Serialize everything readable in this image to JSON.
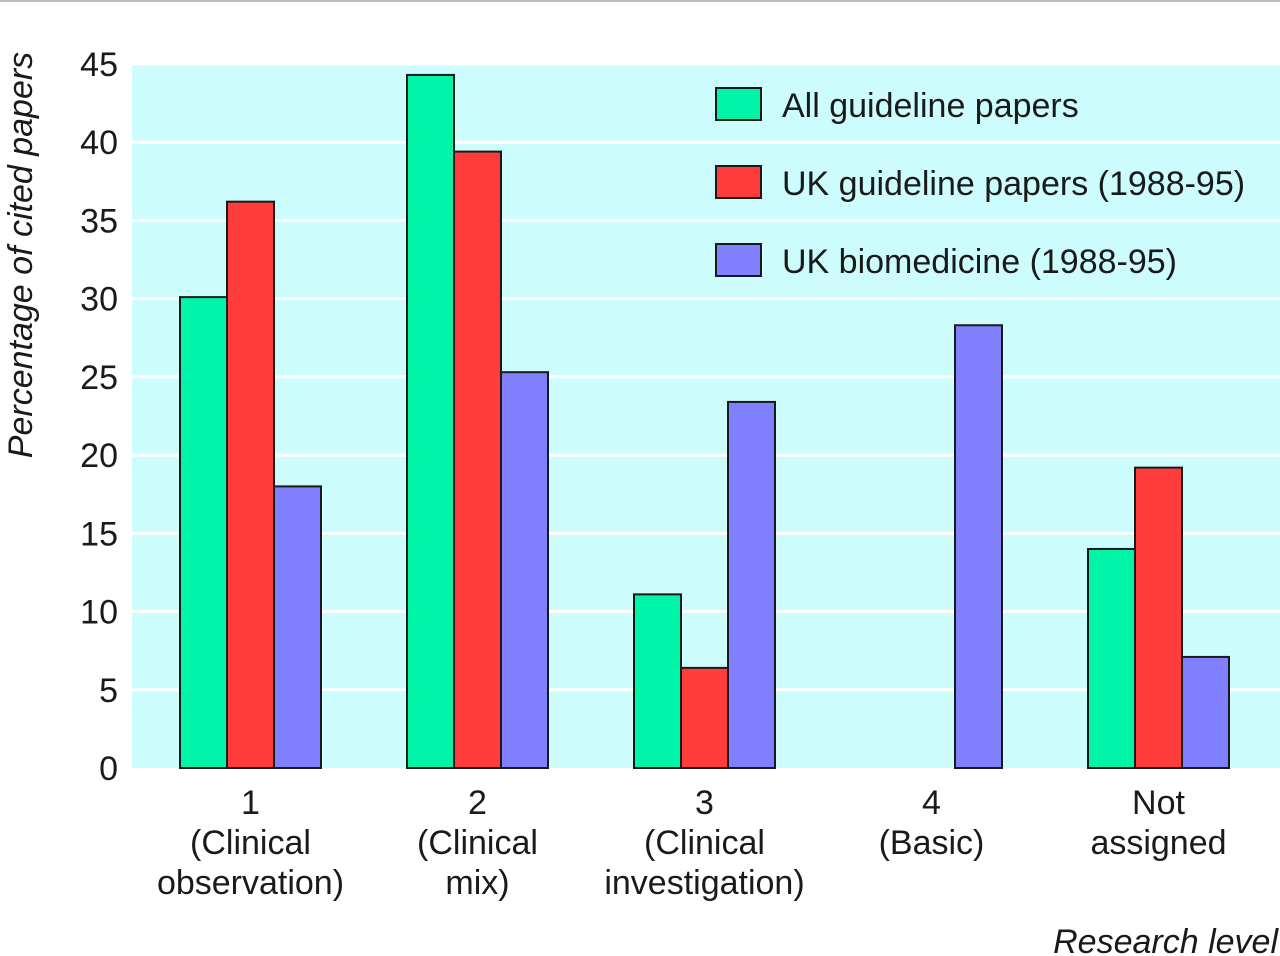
{
  "chart_data": {
    "type": "bar",
    "xlabel": "Research level",
    "ylabel": "Percentage of cited papers",
    "ylim": [
      0,
      45
    ],
    "yticks": [
      0,
      5,
      10,
      15,
      20,
      25,
      30,
      35,
      40,
      45
    ],
    "grid": "horizontal",
    "legend_position": "top-right",
    "plot_background": "#ccfcfc",
    "grid_color": "#ffffff",
    "categories": [
      {
        "lines": [
          "1",
          "(Clinical",
          "observation)"
        ]
      },
      {
        "lines": [
          "2",
          "(Clinical",
          "mix)"
        ]
      },
      {
        "lines": [
          "3",
          "(Clinical",
          "investigation)"
        ]
      },
      {
        "lines": [
          "4",
          "(Basic)"
        ]
      },
      {
        "lines": [
          "Not",
          "assigned"
        ]
      }
    ],
    "series": [
      {
        "name": "All guideline papers",
        "color": "#00f5a8",
        "values": [
          30.1,
          44.3,
          11.1,
          0,
          14.0
        ]
      },
      {
        "name": "UK guideline papers (1988-95)",
        "color": "#ff3c3c",
        "values": [
          36.2,
          39.4,
          6.4,
          0,
          19.2
        ]
      },
      {
        "name": "UK biomedicine (1988-95)",
        "color": "#8080ff",
        "values": [
          18.0,
          25.3,
          23.4,
          28.3,
          7.1
        ]
      }
    ]
  }
}
